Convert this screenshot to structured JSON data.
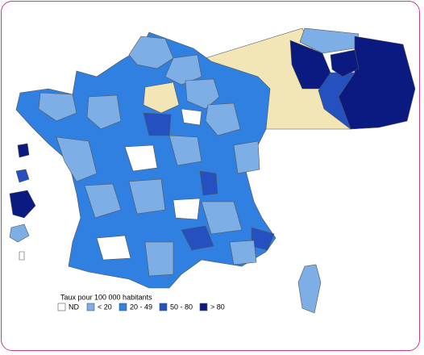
{
  "legend": {
    "title": "Taux pour 100 000 habitants",
    "items": [
      {
        "label": "ND"
      },
      {
        "label": "< 20"
      },
      {
        "label": "20 - 49"
      },
      {
        "label": "50 - 80"
      },
      {
        "label": "> 80"
      }
    ]
  }
}
